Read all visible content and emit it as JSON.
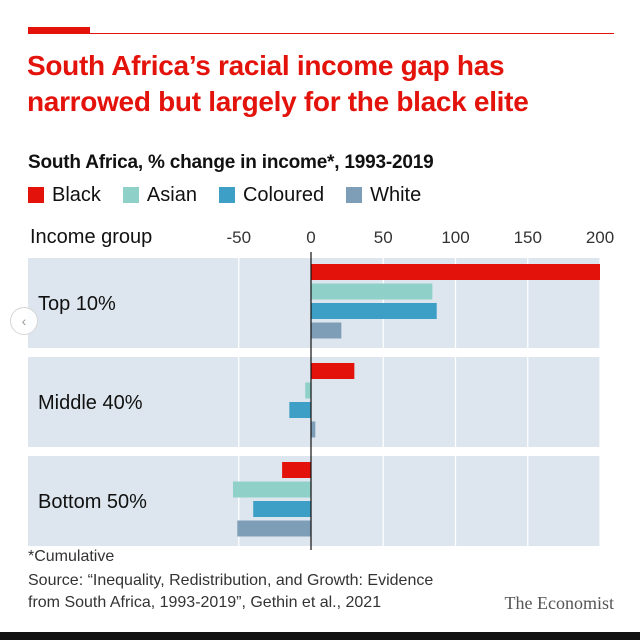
{
  "headline": "South Africa’s racial income gap has narrowed but largely for the black elite",
  "chart_data": {
    "type": "bar",
    "orientation": "horizontal",
    "title": "South Africa, % change in income*, 1993-2019",
    "ylabel": "Income group",
    "categories": [
      "Top 10%",
      "Middle 40%",
      "Bottom 50%"
    ],
    "series": [
      {
        "name": "Black",
        "color": "#e3120b",
        "values": [
          200,
          30,
          -20
        ]
      },
      {
        "name": "Asian",
        "color": "#8fd0c8",
        "values": [
          84,
          -4,
          -54
        ]
      },
      {
        "name": "Coloured",
        "color": "#3e9fc6",
        "values": [
          87,
          -15,
          -40
        ]
      },
      {
        "name": "White",
        "color": "#7e9eb8",
        "values": [
          21,
          3,
          -51
        ]
      }
    ],
    "xticks": [
      -50,
      0,
      50,
      100,
      150,
      200
    ],
    "tick_labels": [
      "-50",
      "0",
      "50",
      "100",
      "150",
      "200"
    ],
    "xlim": [
      -55,
      200
    ],
    "panel_color": "#dde6ee"
  },
  "footnote": "*Cumulative",
  "source": "Source: “Inequality, Redistribution, and Growth: Evidence from South Africa, 1993-2019”, Gethin et al., 2021",
  "brand": "The Economist",
  "nav_icon": "‹"
}
